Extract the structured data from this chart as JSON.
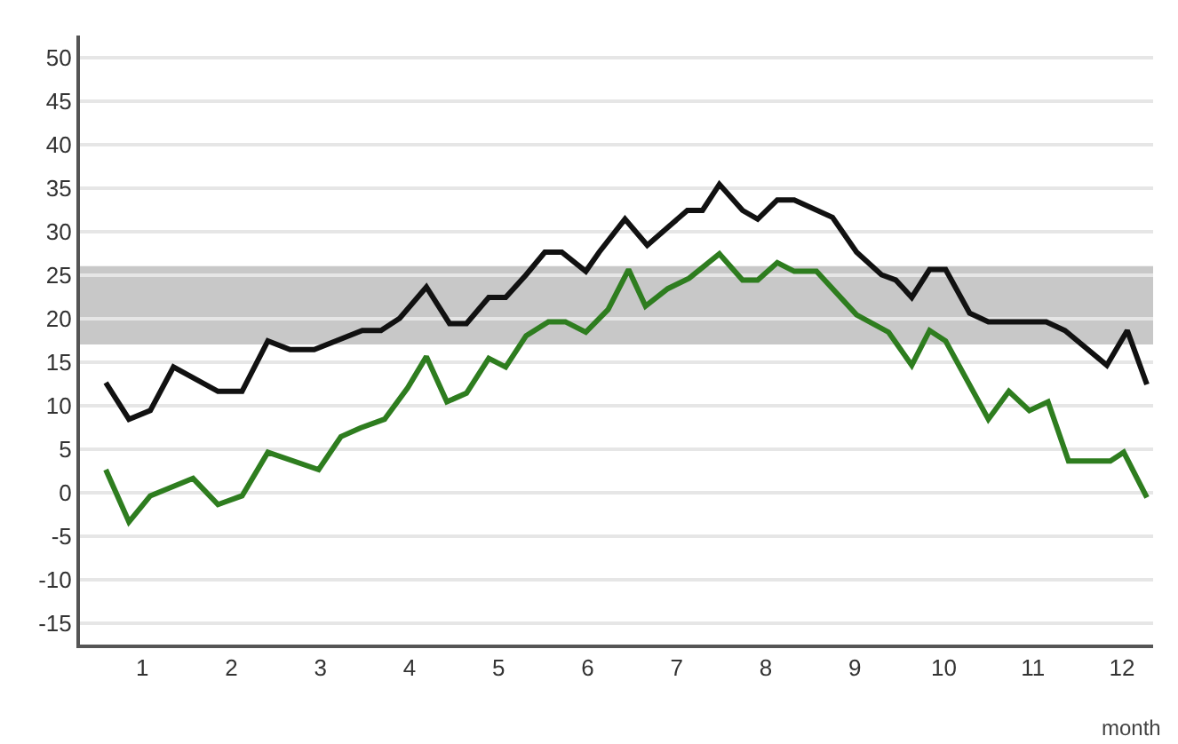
{
  "chart_data": {
    "type": "line",
    "xlabel": "month",
    "xlim": [
      0.3,
      12.35
    ],
    "xticks": [
      1,
      2,
      3,
      4,
      5,
      6,
      7,
      8,
      9,
      10,
      11,
      12
    ],
    "ylim": [
      -17.5,
      52.5
    ],
    "yticks": [
      -15,
      -10,
      -5,
      0,
      5,
      10,
      15,
      20,
      25,
      30,
      35,
      40,
      45,
      50
    ],
    "grid": "y",
    "marker": "none",
    "line_style": "solid",
    "bands": [
      {
        "axis": "y",
        "from": 17,
        "to": 26,
        "color": "#c8c8c8"
      }
    ],
    "series": [
      {
        "color": "#111111",
        "x": [
          0.59,
          0.85,
          1.09,
          1.35,
          1.85,
          2.12,
          2.41,
          2.66,
          2.93,
          3.47,
          3.68,
          3.89,
          4.19,
          4.45,
          4.64,
          4.89,
          5.08,
          5.31,
          5.52,
          5.71,
          5.98,
          6.13,
          6.42,
          6.67,
          7.12,
          7.29,
          7.48,
          7.74,
          7.91,
          8.13,
          8.32,
          8.75,
          9.02,
          9.3,
          9.46,
          9.64,
          9.84,
          10.02,
          10.29,
          10.5,
          11.15,
          11.36,
          11.83,
          12.06,
          12.28
        ],
        "values": [
          12.6,
          8.4,
          9.4,
          14.4,
          11.6,
          11.6,
          17.4,
          16.4,
          16.4,
          18.6,
          18.6,
          20,
          23.6,
          19.4,
          19.4,
          22.4,
          22.4,
          25,
          27.6,
          27.6,
          25.4,
          27.6,
          31.4,
          28.4,
          32.4,
          32.4,
          35.4,
          32.4,
          31.4,
          33.6,
          33.6,
          31.6,
          27.6,
          25,
          24.4,
          22.4,
          25.6,
          25.6,
          20.6,
          19.6,
          19.6,
          18.6,
          14.6,
          18.6,
          12.4
        ]
      },
      {
        "color": "#2e7d1f",
        "x": [
          0.59,
          0.85,
          1.09,
          1.57,
          1.85,
          2.12,
          2.41,
          2.98,
          3.23,
          3.45,
          3.72,
          3.98,
          4.19,
          4.42,
          4.64,
          4.89,
          5.08,
          5.31,
          5.56,
          5.75,
          5.98,
          6.23,
          6.46,
          6.65,
          6.9,
          7.14,
          7.48,
          7.74,
          7.91,
          8.13,
          8.32,
          8.57,
          9.02,
          9.38,
          9.64,
          9.84,
          10.02,
          10.5,
          10.73,
          10.96,
          11.17,
          11.4,
          11.87,
          12.02,
          12.28
        ],
        "values": [
          2.6,
          -3.4,
          -0.4,
          1.6,
          -1.4,
          -0.4,
          4.6,
          2.6,
          6.4,
          7.4,
          8.4,
          12,
          15.6,
          10.4,
          11.4,
          15.4,
          14.4,
          18,
          19.6,
          19.6,
          18.4,
          21,
          25.6,
          21.4,
          23.4,
          24.6,
          27.4,
          24.4,
          24.4,
          26.4,
          25.4,
          25.4,
          20.4,
          18.4,
          14.6,
          18.6,
          17.4,
          8.4,
          11.6,
          9.4,
          10.4,
          3.6,
          3.6,
          4.6,
          -0.6
        ]
      }
    ]
  }
}
